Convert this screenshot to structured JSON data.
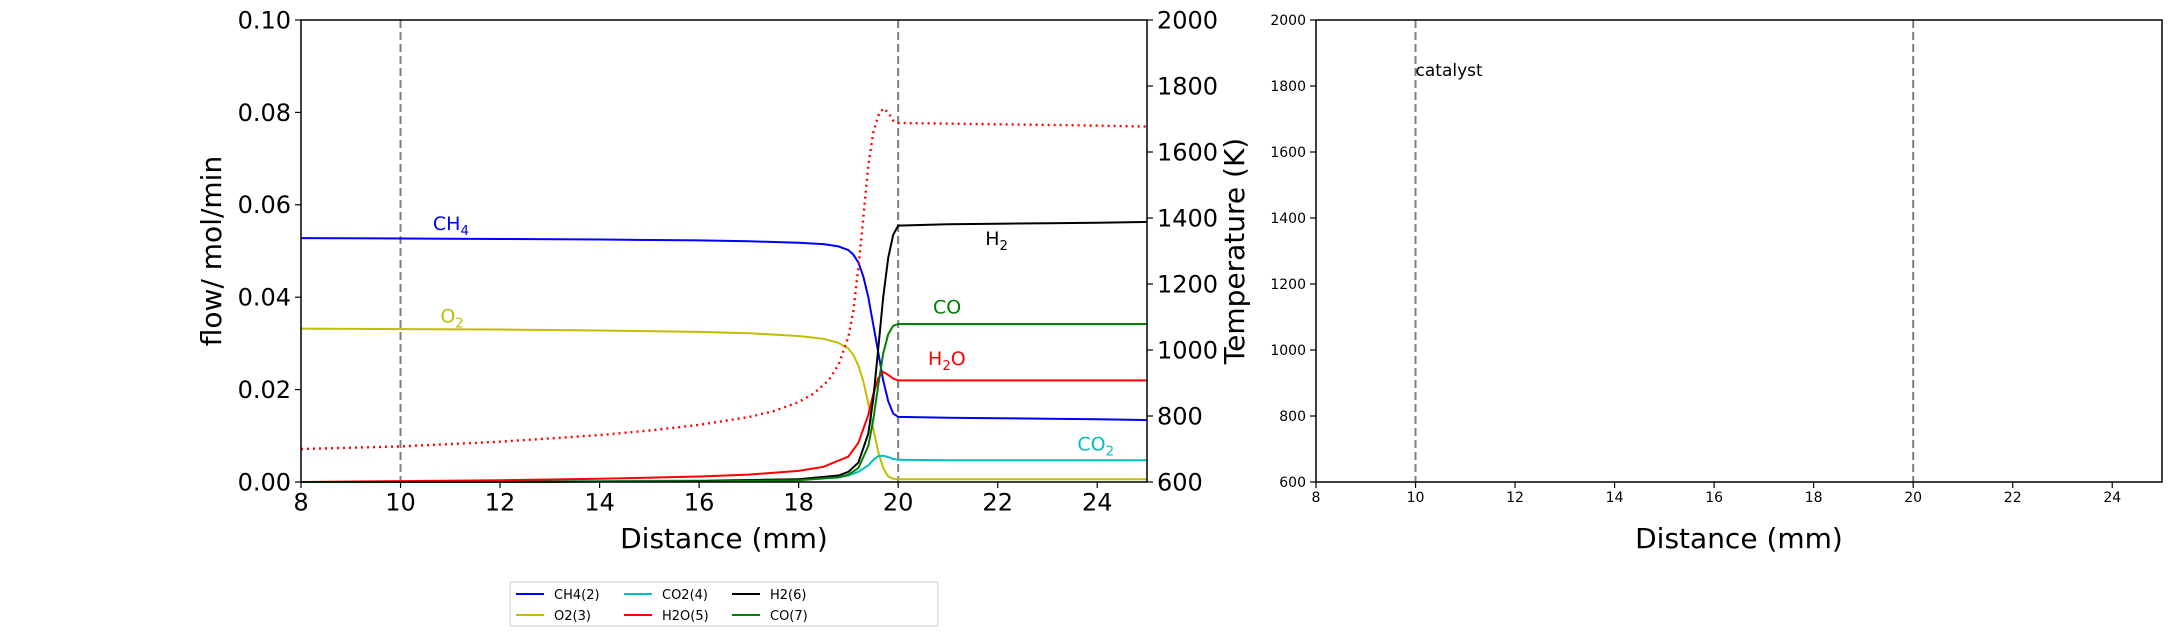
{
  "chart_data": [
    {
      "type": "line",
      "xlabel": "Distance (mm)",
      "ylabel": "flow/ mol/min",
      "y2label": "Temperature (K)",
      "xlim": [
        8,
        25
      ],
      "ylim": [
        0,
        0.1
      ],
      "y2lim": [
        600,
        2000
      ],
      "xticks": [
        "8",
        "10",
        "12",
        "14",
        "16",
        "18",
        "20",
        "22",
        "24"
      ],
      "yticks": [
        "0.00",
        "0.02",
        "0.04",
        "0.06",
        "0.08",
        "0.10"
      ],
      "y2ticks": [
        "600",
        "800",
        "1000",
        "1200",
        "1400",
        "1600",
        "1800",
        "2000"
      ],
      "vlines": [
        10,
        20
      ],
      "series": [
        {
          "name": "CH4(2)",
          "color": "#0000ff",
          "x": [
            8,
            10,
            12,
            14,
            16,
            17,
            18,
            18.5,
            18.8,
            19,
            19.1,
            19.2,
            19.3,
            19.4,
            19.5,
            19.6,
            19.7,
            19.8,
            19.9,
            20,
            21,
            22,
            23,
            24,
            25
          ],
          "y": [
            0.0528,
            0.0527,
            0.0526,
            0.0525,
            0.0523,
            0.0521,
            0.0518,
            0.0515,
            0.051,
            0.0502,
            0.0492,
            0.0475,
            0.0445,
            0.04,
            0.034,
            0.028,
            0.022,
            0.0175,
            0.0148,
            0.0141,
            0.0139,
            0.0138,
            0.0137,
            0.0136,
            0.0134
          ]
        },
        {
          "name": "O2(3)",
          "color": "#bfbf00",
          "x": [
            8,
            10,
            12,
            14,
            16,
            17,
            18,
            18.5,
            18.8,
            19,
            19.1,
            19.2,
            19.3,
            19.4,
            19.5,
            19.6,
            19.7,
            19.8,
            19.9,
            20,
            21,
            22,
            23,
            24,
            25
          ],
          "y": [
            0.0332,
            0.0331,
            0.033,
            0.0328,
            0.0325,
            0.0322,
            0.0316,
            0.031,
            0.0301,
            0.0289,
            0.0275,
            0.0252,
            0.0218,
            0.017,
            0.0115,
            0.0065,
            0.003,
            0.0012,
            0.0007,
            0.0006,
            0.0006,
            0.0006,
            0.0006,
            0.0006,
            0.0006
          ]
        },
        {
          "name": "CO2(4)",
          "color": "#00bfbf",
          "x": [
            8,
            10,
            12,
            14,
            16,
            18,
            18.8,
            19,
            19.2,
            19.4,
            19.5,
            19.6,
            19.7,
            19.8,
            19.9,
            20,
            21,
            22,
            23,
            24,
            25
          ],
          "y": [
            0.0,
            0.0,
            0.0001,
            0.0002,
            0.0003,
            0.0006,
            0.001,
            0.0014,
            0.0022,
            0.0036,
            0.0048,
            0.0056,
            0.0057,
            0.0054,
            0.005,
            0.0048,
            0.0047,
            0.0047,
            0.0047,
            0.0047,
            0.0047
          ]
        },
        {
          "name": "H2O(5)",
          "color": "#ff0000",
          "x": [
            8,
            10,
            12,
            14,
            16,
            17,
            18,
            18.5,
            19,
            19.2,
            19.4,
            19.5,
            19.6,
            19.7,
            19.8,
            19.9,
            20,
            20.5,
            21,
            22,
            23,
            24,
            25
          ],
          "y": [
            0.0,
            0.0002,
            0.0004,
            0.0007,
            0.0012,
            0.0016,
            0.0024,
            0.0033,
            0.0055,
            0.0085,
            0.0145,
            0.019,
            0.0225,
            0.0238,
            0.0232,
            0.0224,
            0.022,
            0.022,
            0.022,
            0.022,
            0.022,
            0.022,
            0.022
          ]
        },
        {
          "name": "H2(6)",
          "color": "#000000",
          "x": [
            8,
            10,
            12,
            14,
            16,
            18,
            18.8,
            19,
            19.2,
            19.4,
            19.5,
            19.6,
            19.7,
            19.8,
            19.9,
            20,
            21,
            22,
            23,
            24,
            25
          ],
          "y": [
            0.0,
            0.0,
            0.0,
            0.0001,
            0.0002,
            0.0006,
            0.0014,
            0.0022,
            0.0042,
            0.0105,
            0.018,
            0.029,
            0.04,
            0.0485,
            0.0535,
            0.0555,
            0.0558,
            0.0559,
            0.056,
            0.0561,
            0.0563
          ]
        },
        {
          "name": "CO(7)",
          "color": "#008000",
          "x": [
            8,
            10,
            12,
            14,
            16,
            18,
            18.8,
            19,
            19.2,
            19.4,
            19.5,
            19.6,
            19.7,
            19.8,
            19.9,
            20,
            21,
            22,
            23,
            24,
            25
          ],
          "y": [
            0.0,
            0.0,
            0.0,
            0.0001,
            0.0001,
            0.0004,
            0.001,
            0.0016,
            0.003,
            0.0078,
            0.0135,
            0.021,
            0.0278,
            0.032,
            0.0338,
            0.0342,
            0.0342,
            0.0342,
            0.0342,
            0.0342,
            0.0342
          ]
        },
        {
          "name": "",
          "axis": "y2",
          "color": "#ff0000",
          "style": "dotted",
          "x": [
            8,
            10,
            12,
            14,
            15,
            16,
            17,
            17.5,
            18,
            18.3,
            18.6,
            18.8,
            19,
            19.1,
            19.2,
            19.3,
            19.4,
            19.5,
            19.6,
            19.7,
            19.8,
            19.9,
            20,
            21,
            22,
            23,
            24,
            25
          ],
          "y": [
            700,
            708,
            722,
            742,
            756,
            773,
            797,
            815,
            842,
            868,
            908,
            955,
            1040,
            1120,
            1250,
            1400,
            1560,
            1660,
            1710,
            1732,
            1720,
            1695,
            1688,
            1686,
            1684,
            1682,
            1680,
            1677
          ]
        }
      ],
      "annotations": [
        {
          "label": "CH",
          "sub": "4",
          "suffix": "",
          "x": 10.65,
          "y": 0.0545,
          "color": "#0000ff"
        },
        {
          "label": "O",
          "sub": "2",
          "suffix": "",
          "x": 10.8,
          "y": 0.0345,
          "color": "#bfbf00"
        },
        {
          "label": "H",
          "sub": "2",
          "suffix": "",
          "x": 21.75,
          "y": 0.0513,
          "color": "#000000"
        },
        {
          "label": "CO",
          "sub": "",
          "suffix": "",
          "x": 20.7,
          "y": 0.0365,
          "color": "#008000"
        },
        {
          "label": "H",
          "sub": "2",
          "suffix": "O",
          "x": 20.6,
          "y": 0.0253,
          "color": "#ff0000"
        },
        {
          "label": "CO",
          "sub": "2",
          "suffix": "",
          "x": 23.6,
          "y": 0.0068,
          "color": "#00bfbf"
        }
      ],
      "legend": {
        "placement": "below",
        "entries": [
          {
            "name": "CH4(2)",
            "color": "#0000ff"
          },
          {
            "name": "O2(3)",
            "color": "#bfbf00"
          },
          {
            "name": "CO2(4)",
            "color": "#00bfbf"
          },
          {
            "name": "H2O(5)",
            "color": "#ff0000"
          },
          {
            "name": "H2(6)",
            "color": "#000000"
          },
          {
            "name": "CO(7)",
            "color": "#008000"
          }
        ]
      }
    },
    {
      "type": "line",
      "xlabel": "Distance (mm)",
      "xlim": [
        8,
        25
      ],
      "ylim": [
        600,
        2000
      ],
      "xticks": [
        "8",
        "10",
        "12",
        "14",
        "16",
        "18",
        "20",
        "22",
        "24"
      ],
      "yticks": [
        "600",
        "800",
        "1000",
        "1200",
        "1400",
        "1600",
        "1800",
        "2000"
      ],
      "vlines": [
        10,
        20
      ],
      "series": [],
      "annotations": [
        {
          "label": "catalyst",
          "sub": "",
          "suffix": "",
          "x": 10.0,
          "y": 1830,
          "color": "#000000"
        }
      ]
    }
  ]
}
